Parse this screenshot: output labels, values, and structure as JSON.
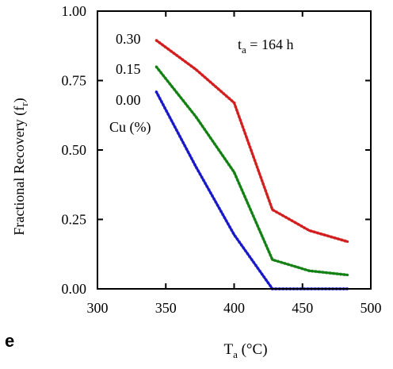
{
  "chart_data": {
    "type": "line",
    "panel_label": "e",
    "ylabel": "Fractional Recovery (f",
    "ylabel_sub": "r",
    "ylabel_close": ")",
    "xlabel": "T",
    "xlabel_sub": "a",
    "xlabel_unit": " (°C)",
    "annotation": {
      "prefix": "t",
      "sub": "a",
      "suffix": " = 164 h"
    },
    "legend_title": "Cu (%)",
    "xlim": [
      300,
      500
    ],
    "ylim": [
      0,
      1
    ],
    "xticks": [
      300,
      350,
      400,
      450,
      500
    ],
    "yticks": [
      0,
      0.25,
      0.5,
      0.75,
      1
    ],
    "xtick_labels": [
      "300",
      "350",
      "400",
      "450",
      "500"
    ],
    "ytick_labels": [
      "0.00",
      "0.25",
      "0.50",
      "0.75",
      "1.00"
    ],
    "grid": false,
    "series": [
      {
        "name": "0.30",
        "color": "#d21e1e",
        "x": [
          343,
          372,
          400,
          428,
          455,
          483
        ],
        "y": [
          0.895,
          0.79,
          0.67,
          0.285,
          0.21,
          0.17
        ]
      },
      {
        "name": "0.15",
        "color": "#128012",
        "x": [
          343,
          372,
          400,
          428,
          455,
          483
        ],
        "y": [
          0.8,
          0.62,
          0.42,
          0.105,
          0.065,
          0.05
        ]
      },
      {
        "name": "0.00",
        "color": "#1818c8",
        "x": [
          343,
          372,
          400,
          428,
          455,
          483
        ],
        "y": [
          0.71,
          0.44,
          0.195,
          0.0,
          0.0,
          0.0
        ]
      }
    ]
  }
}
